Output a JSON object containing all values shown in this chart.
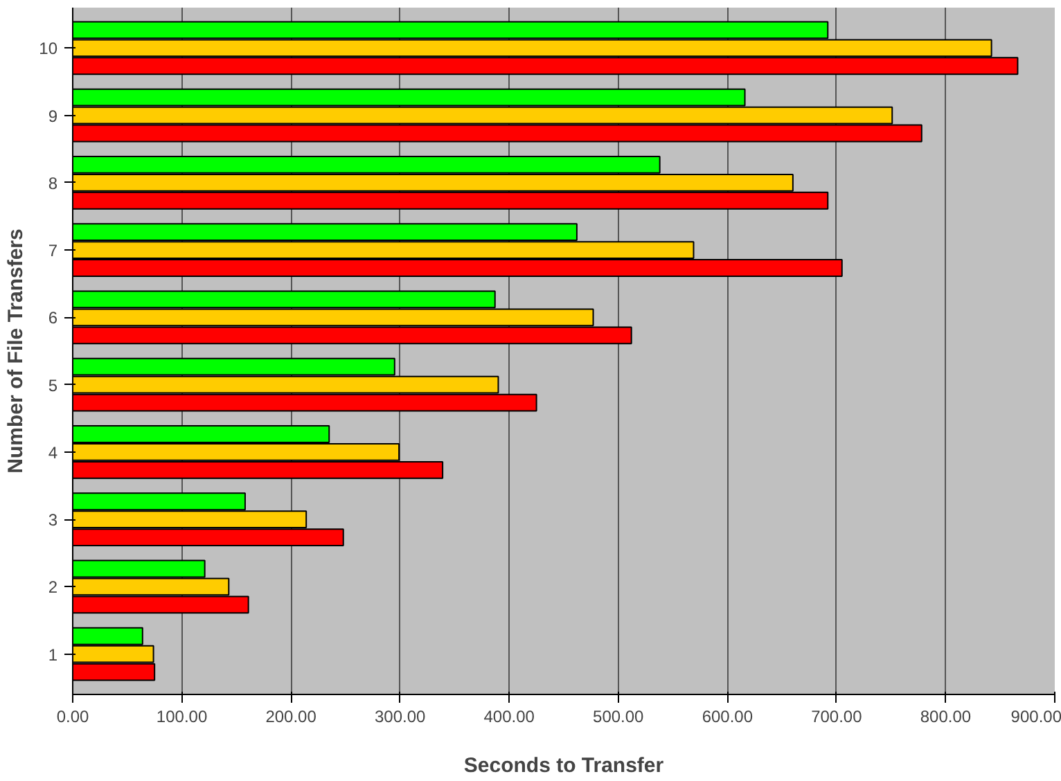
{
  "chart_data": {
    "type": "bar",
    "orientation": "horizontal",
    "xlabel": "Seconds to Transfer",
    "ylabel": "Number of File Transfers",
    "categories": [
      "10",
      "9",
      "8",
      "7",
      "6",
      "5",
      "4",
      "3",
      "2",
      "1"
    ],
    "series": [
      {
        "color": "#00ff00",
        "values": [
          692,
          616,
          538,
          462,
          387,
          295,
          235,
          158,
          121,
          64
        ]
      },
      {
        "color": "#ffcc00",
        "values": [
          842,
          751,
          660,
          569,
          477,
          390,
          299,
          214,
          143,
          74
        ]
      },
      {
        "color": "#ff0000",
        "values": [
          866,
          778,
          692,
          705,
          512,
          425,
          339,
          248,
          161,
          75
        ]
      }
    ],
    "xlim": [
      0,
      900
    ],
    "xticks": [
      {
        "value": 0,
        "label": "0.00"
      },
      {
        "value": 100,
        "label": "100.00"
      },
      {
        "value": 200,
        "label": "200.00"
      },
      {
        "value": 300,
        "label": "300.00"
      },
      {
        "value": 400,
        "label": "400.00"
      },
      {
        "value": 500,
        "label": "500.00"
      },
      {
        "value": 600,
        "label": "600.00"
      },
      {
        "value": 700,
        "label": "700.00"
      },
      {
        "value": 800,
        "label": "800.00"
      },
      {
        "value": 900,
        "label": "900.00"
      }
    ],
    "grid": "x"
  }
}
